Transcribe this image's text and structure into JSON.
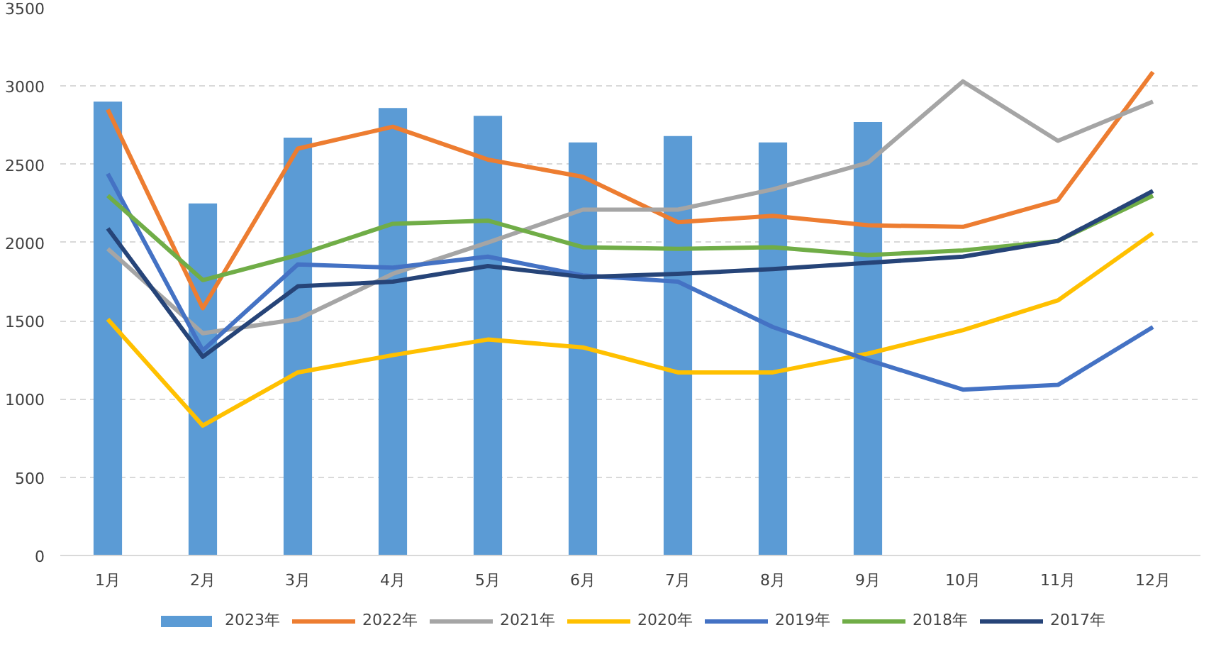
{
  "chart_data": {
    "type": "line",
    "categories": [
      "1月",
      "2月",
      "3月",
      "4月",
      "5月",
      "6月",
      "7月",
      "8月",
      "9月",
      "10月",
      "11月",
      "12月"
    ],
    "ylim": [
      0,
      3500
    ],
    "yticks": [
      0,
      500,
      1000,
      1500,
      2000,
      2500,
      3000,
      3500
    ],
    "grid": "y",
    "legend": "bottom",
    "series": [
      {
        "name": "2023年",
        "type": "bar",
        "color": "#5b9bd5",
        "values": [
          2900,
          2250,
          2670,
          2860,
          2810,
          2640,
          2680,
          2640,
          2770,
          null,
          null,
          null
        ]
      },
      {
        "name": "2022年",
        "color": "#ed7d31",
        "values": [
          2850,
          1580,
          2600,
          2740,
          2530,
          2420,
          2130,
          2170,
          2110,
          2100,
          2270,
          3090
        ]
      },
      {
        "name": "2021年",
        "color": "#a5a5a5",
        "values": [
          1960,
          1420,
          1510,
          1800,
          2000,
          2210,
          2210,
          2340,
          2510,
          3030,
          2650,
          2900
        ]
      },
      {
        "name": "2020年",
        "color": "#ffc000",
        "values": [
          1510,
          830,
          1170,
          1280,
          1380,
          1330,
          1170,
          1170,
          1290,
          1440,
          1630,
          2060
        ]
      },
      {
        "name": "2019年",
        "color": "#4472c4",
        "values": [
          2440,
          1310,
          1860,
          1840,
          1910,
          1790,
          1750,
          1460,
          1250,
          1060,
          1090,
          1460
        ]
      },
      {
        "name": "2018年",
        "color": "#70ad47",
        "values": [
          2300,
          1760,
          1920,
          2120,
          2140,
          1970,
          1960,
          1970,
          1920,
          1950,
          2010,
          2300
        ]
      },
      {
        "name": "2017年",
        "color": "#264478",
        "values": [
          2090,
          1270,
          1720,
          1750,
          1850,
          1780,
          1800,
          1830,
          1870,
          1910,
          2010,
          2330
        ]
      }
    ]
  }
}
